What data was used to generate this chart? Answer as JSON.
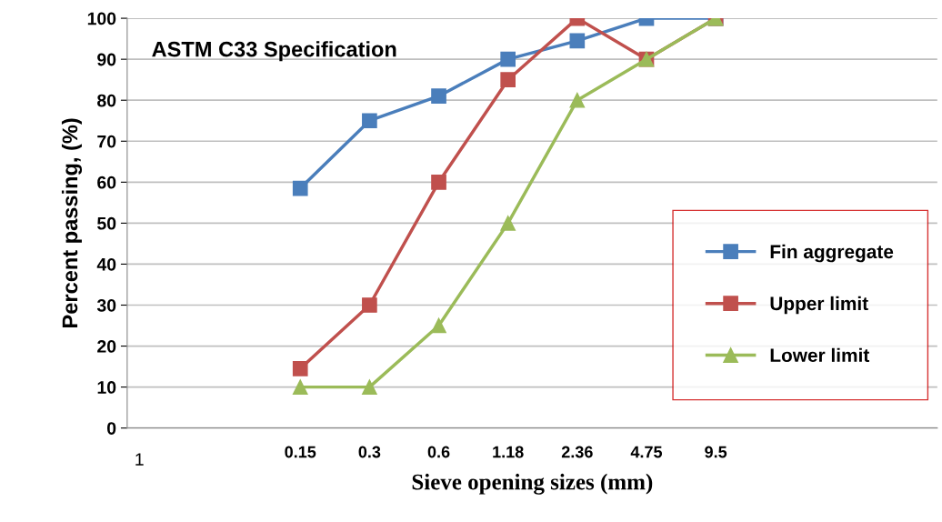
{
  "chart_data": {
    "type": "line",
    "xlabel": "Sieve opening sizes (mm)",
    "ylabel": "Percent passing, (%)",
    "annotations": [
      "ASTM C33 Specification",
      "1"
    ],
    "ylim": [
      0,
      100
    ],
    "categories": [
      "0.15",
      "0.3",
      "0.6",
      "1.18",
      "2.36",
      "4.75",
      "9.5"
    ],
    "yticks": [
      0,
      10,
      20,
      30,
      40,
      50,
      60,
      70,
      80,
      90,
      100
    ],
    "grid": "y",
    "legend": "right",
    "line_style": "solid",
    "series": [
      {
        "name": "Fin aggregate",
        "color": "#4a7ebb",
        "marker": "square",
        "values": [
          58.5,
          75,
          81,
          90,
          94.5,
          100,
          100
        ]
      },
      {
        "name": "Upper limit",
        "color": "#c0504d",
        "marker": "square",
        "values": [
          14.5,
          30,
          60,
          85,
          100,
          90,
          100
        ]
      },
      {
        "name": "Lower limit",
        "color": "#9bbb59",
        "marker": "triangle",
        "values": [
          10,
          10,
          25,
          50,
          80,
          90,
          100
        ]
      }
    ]
  }
}
